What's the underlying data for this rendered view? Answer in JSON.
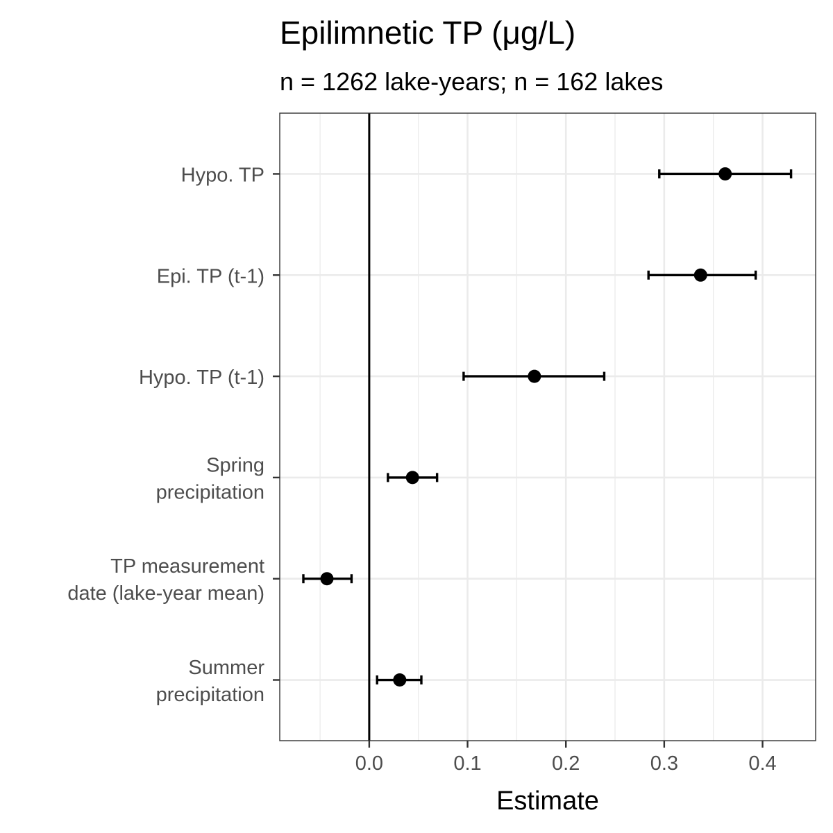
{
  "chart_data": {
    "type": "scatter",
    "title": "Epilimnetic TP (μg/L)",
    "subtitle": "n = 1262 lake-years; n = 162 lakes",
    "xlabel": "Estimate",
    "ylabel": "",
    "xlim": [
      -0.091,
      0.454
    ],
    "x_ticks": [
      {
        "value": 0.0,
        "label": "0.0"
      },
      {
        "value": 0.1,
        "label": "0.1"
      },
      {
        "value": 0.2,
        "label": "0.2"
      },
      {
        "value": 0.3,
        "label": "0.3"
      },
      {
        "value": 0.4,
        "label": "0.4"
      }
    ],
    "x_minor_ticks": [
      -0.05,
      0.05,
      0.15,
      0.25,
      0.35
    ],
    "reference_line_x": 0,
    "grid": true,
    "color": "#000000",
    "categories": [
      {
        "lines": [
          "Hypo. TP"
        ],
        "estimate": 0.362,
        "lower": 0.295,
        "upper": 0.429
      },
      {
        "lines": [
          "Epi. TP (t-1)"
        ],
        "estimate": 0.337,
        "lower": 0.284,
        "upper": 0.393
      },
      {
        "lines": [
          "Hypo. TP (t-1)"
        ],
        "estimate": 0.168,
        "lower": 0.096,
        "upper": 0.239
      },
      {
        "lines": [
          "Spring",
          "precipitation"
        ],
        "estimate": 0.044,
        "lower": 0.019,
        "upper": 0.069
      },
      {
        "lines": [
          "TP measurement",
          "date (lake-year mean)"
        ],
        "estimate": -0.043,
        "lower": -0.067,
        "upper": -0.018
      },
      {
        "lines": [
          "Summer",
          "precipitation"
        ],
        "estimate": 0.031,
        "lower": 0.008,
        "upper": 0.053
      }
    ]
  }
}
